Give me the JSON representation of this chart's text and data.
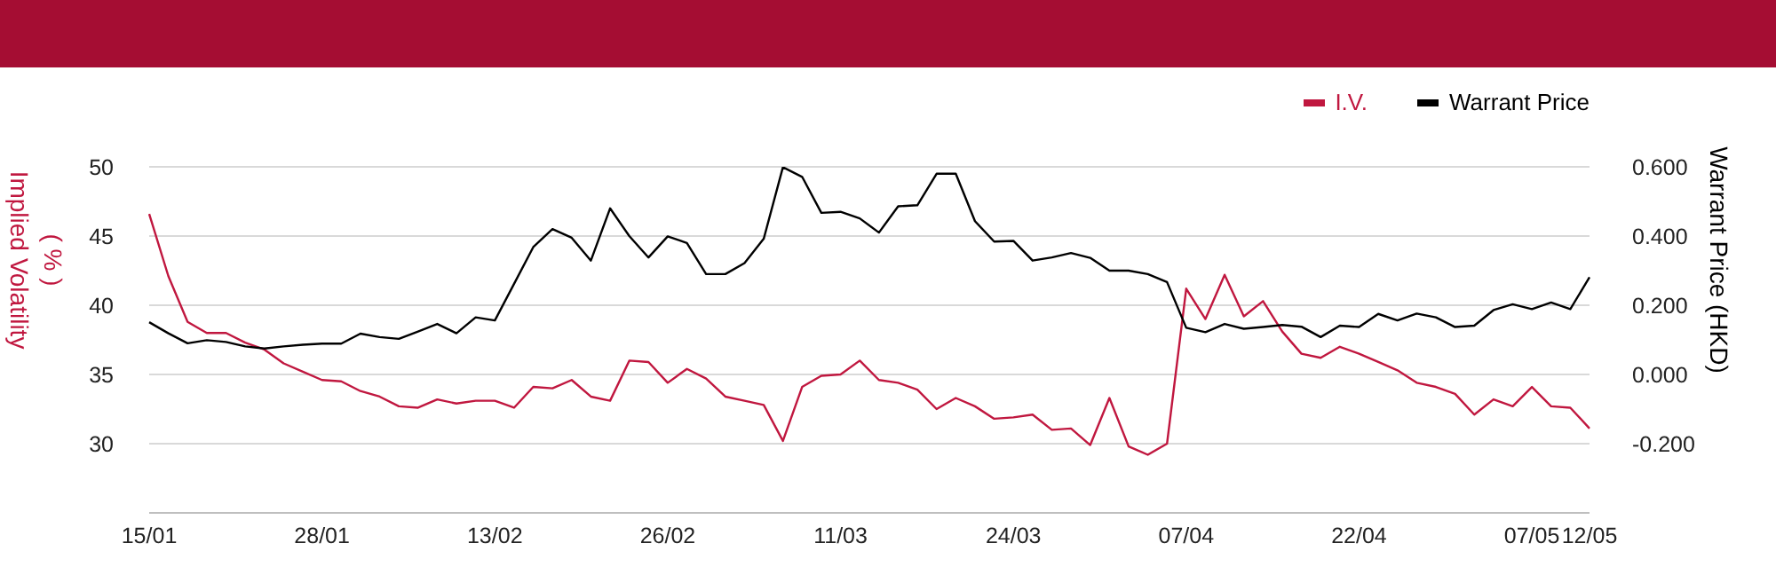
{
  "chart_data": {
    "type": "line",
    "categories": [
      "15/01",
      null,
      null,
      null,
      null,
      null,
      null,
      null,
      null,
      "28/01",
      null,
      null,
      null,
      null,
      null,
      null,
      null,
      null,
      "13/02",
      null,
      null,
      null,
      null,
      null,
      null,
      null,
      null,
      "26/02",
      null,
      null,
      null,
      null,
      null,
      null,
      null,
      null,
      "11/03",
      null,
      null,
      null,
      null,
      null,
      null,
      null,
      null,
      "24/03",
      null,
      null,
      null,
      null,
      null,
      null,
      null,
      null,
      "07/04",
      null,
      null,
      null,
      null,
      null,
      null,
      null,
      null,
      "22/04",
      null,
      null,
      null,
      null,
      null,
      null,
      null,
      null,
      "07/05",
      null,
      null,
      "12/05"
    ],
    "series": [
      {
        "name": "I.V.",
        "color": "#c0173f",
        "values": [
          46.6,
          42.1,
          38.8,
          38.0,
          38.0,
          37.3,
          36.8,
          35.8,
          35.2,
          34.6,
          34.5,
          33.8,
          33.4,
          32.7,
          32.6,
          33.2,
          32.9,
          33.1,
          33.1,
          32.6,
          34.1,
          34.0,
          34.6,
          33.4,
          33.1,
          36.0,
          35.9,
          34.4,
          35.4,
          34.7,
          33.4,
          33.1,
          32.8,
          30.2,
          34.1,
          34.9,
          35.0,
          36.0,
          34.6,
          34.4,
          33.9,
          32.5,
          33.3,
          32.7,
          31.8,
          31.9,
          32.1,
          31.0,
          31.1,
          29.9,
          33.3,
          29.8,
          29.2,
          30.0,
          41.2,
          39.0,
          42.2,
          39.2,
          40.3,
          38.1,
          36.5,
          36.2,
          37.0,
          36.5,
          35.9,
          35.3,
          34.4,
          34.1,
          33.6,
          32.1,
          33.2,
          32.7,
          34.1,
          32.7,
          32.6,
          31.1
        ]
      },
      {
        "name": "Warrant Price",
        "color": "#000000",
        "axis": "y2",
        "values": [
          0.151,
          0.119,
          0.09,
          0.099,
          0.094,
          0.081,
          0.075,
          0.081,
          0.086,
          0.089,
          0.089,
          0.118,
          0.108,
          0.103,
          0.124,
          0.146,
          0.119,
          0.165,
          0.156,
          0.262,
          0.368,
          0.42,
          0.395,
          0.329,
          0.48,
          0.4,
          0.338,
          0.399,
          0.38,
          0.29,
          0.29,
          0.322,
          0.392,
          0.599,
          0.571,
          0.467,
          0.47,
          0.451,
          0.41,
          0.486,
          0.489,
          0.58,
          0.58,
          0.443,
          0.384,
          0.386,
          0.329,
          0.338,
          0.351,
          0.337,
          0.3,
          0.3,
          0.29,
          0.267,
          0.135,
          0.122,
          0.146,
          0.132,
          0.137,
          0.143,
          0.138,
          0.108,
          0.141,
          0.137,
          0.175,
          0.156,
          0.176,
          0.165,
          0.137,
          0.141,
          0.186,
          0.203,
          0.189,
          0.208,
          0.189,
          0.281
        ]
      }
    ],
    "ylabel": "Implied Volatility\n( % )",
    "y2label": "Warrant Price (HKD)",
    "ylim": [
      25,
      50
    ],
    "yticks": [
      30,
      35,
      40,
      45,
      50
    ],
    "y2lim": [
      -0.4,
      0.6
    ],
    "y2ticks": [
      {
        "value": -0.2,
        "label": "-0.200"
      },
      {
        "value": 0,
        "label": "0.000"
      },
      {
        "value": 0.2,
        "label": "0.200"
      },
      {
        "value": 0.4,
        "label": "0.400"
      },
      {
        "value": 0.6,
        "label": "0.600"
      }
    ],
    "grid": "y",
    "legend": "top right",
    "marker": "none",
    "line_style": "solid"
  }
}
